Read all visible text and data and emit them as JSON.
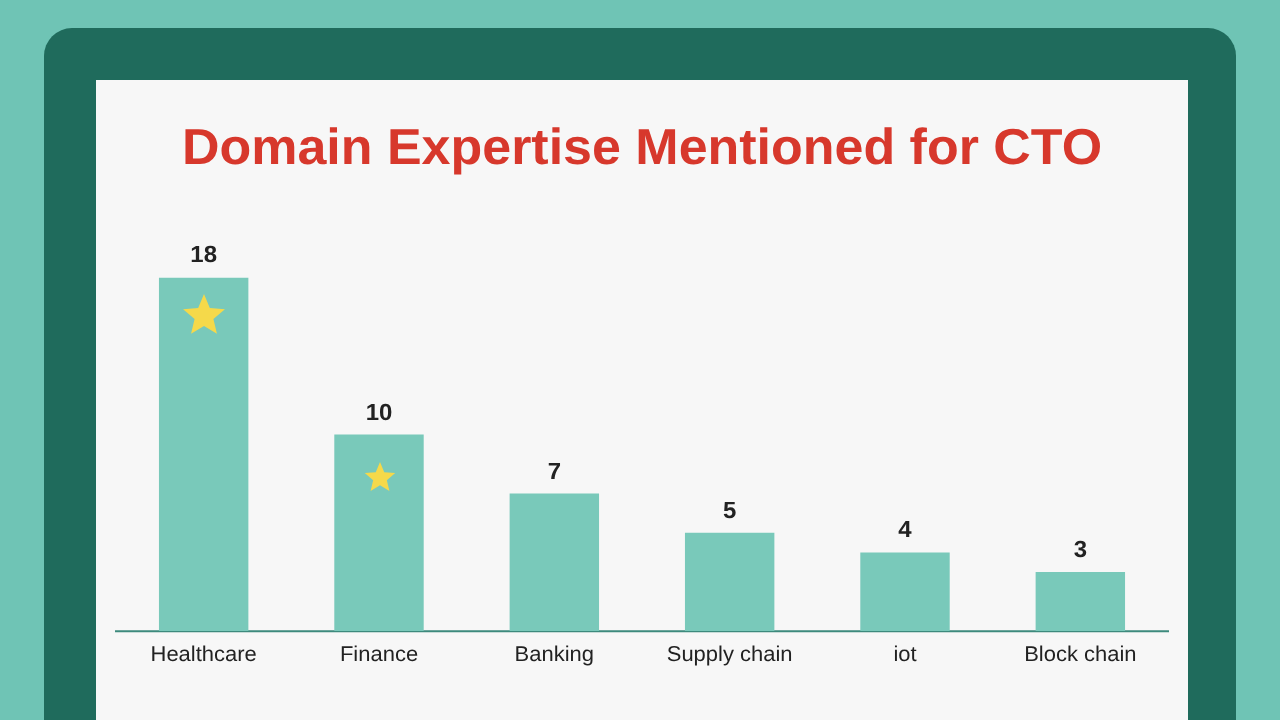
{
  "chart_data": {
    "type": "bar",
    "title": "Domain Expertise Mentioned for CTO",
    "categories": [
      "Healthcare",
      "Finance",
      "Banking",
      "Supply chain",
      "iot",
      "Block chain"
    ],
    "values": [
      18,
      10,
      7,
      5,
      4,
      3
    ],
    "color": "#79c9ba",
    "data_labels": true,
    "grid": false,
    "legend": false
  }
}
